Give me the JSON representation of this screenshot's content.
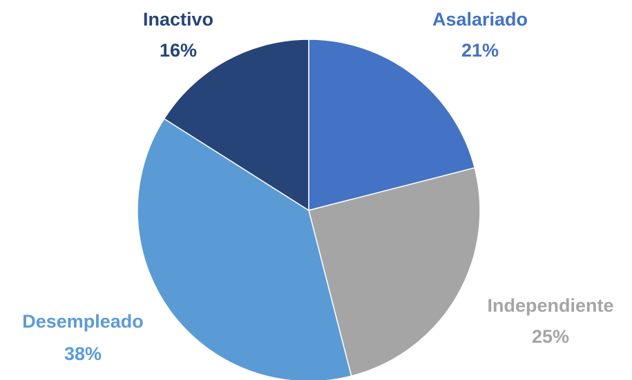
{
  "chart_data": {
    "type": "pie",
    "categories": [
      "Asalariado",
      "Independiente",
      "Desempleado",
      "Inactivo"
    ],
    "values": [
      21,
      25,
      38,
      16
    ],
    "value_labels": [
      "21%",
      "25%",
      "38%",
      "16%"
    ],
    "colors": [
      "#4472c4",
      "#a5a5a5",
      "#5b9bd5",
      "#264478"
    ]
  }
}
